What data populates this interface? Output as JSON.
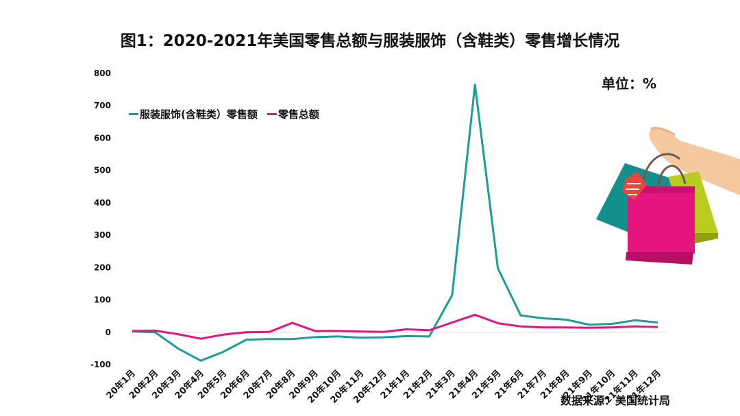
{
  "chart_data": {
    "type": "line",
    "title": "图1：2020-2021年美国零售总额与服装服饰（含鞋类）零售增长情况",
    "unit_label": "单位：%",
    "source": "数据来源：美国统计局",
    "categories": [
      "20年1月",
      "20年2月",
      "20年3月",
      "20年4月",
      "20年5月",
      "20年6月",
      "20年7月",
      "20年8月",
      "20年9月",
      "20年10月",
      "20年11月",
      "20年12月",
      "21年1月",
      "21年2月",
      "21年3月",
      "21年4月",
      "21年5月",
      "21年6月",
      "21年7月",
      "21年8月",
      "21年9月",
      "21年10月",
      "21年11月",
      "21年12月"
    ],
    "y_ticks": [
      -100,
      0,
      100,
      200,
      300,
      400,
      500,
      600,
      700,
      800
    ],
    "ylim": [
      -100,
      800
    ],
    "grid": false,
    "legend_position": "top-left",
    "series": [
      {
        "name": "服装服饰(含鞋类）零售额",
        "color": "#1a9e9a",
        "values": [
          2,
          0,
          -50,
          -88,
          -60,
          -23,
          -21,
          -21,
          -15,
          -13,
          -17,
          -16,
          -12,
          -13,
          115,
          765,
          198,
          52,
          43,
          39,
          23,
          26,
          37,
          30
        ]
      },
      {
        "name": "零售总额",
        "color": "#e4157f",
        "values": [
          4,
          5,
          -6,
          -20,
          -7,
          0,
          1,
          29,
          4,
          4,
          2,
          1,
          9,
          6,
          30,
          54,
          28,
          18,
          15,
          15,
          14,
          15,
          18,
          16
        ]
      }
    ]
  }
}
